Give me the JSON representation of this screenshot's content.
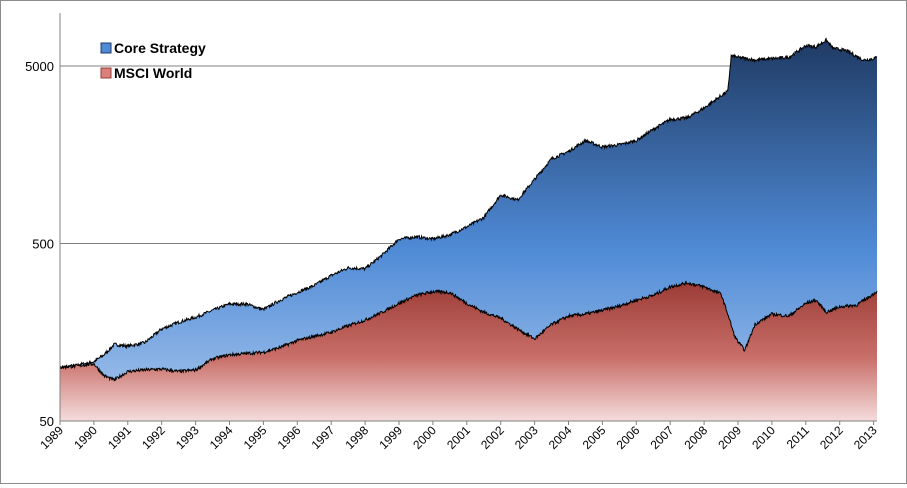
{
  "chart_data": {
    "type": "area",
    "title": "",
    "xlabel": "",
    "ylabel": "",
    "y_scale": "log",
    "ylim": [
      50,
      10000
    ],
    "y_ticks": [
      50,
      500,
      5000
    ],
    "y_tick_labels": [
      "50",
      "500",
      "5000"
    ],
    "x_range": [
      1989.0,
      2013.1
    ],
    "x_ticks": [
      1989,
      1990,
      1991,
      1992,
      1993,
      1994,
      1995,
      1996,
      1997,
      1998,
      1999,
      2000,
      2001,
      2002,
      2003,
      2004,
      2005,
      2006,
      2007,
      2008,
      2009,
      2010,
      2011,
      2012,
      2013
    ],
    "x_tick_labels": [
      "1989",
      "1990",
      "1991",
      "1992",
      "1993",
      "1994",
      "1995",
      "1996",
      "1997",
      "1998",
      "1999",
      "2000",
      "2001",
      "2002",
      "2003",
      "2004",
      "2005",
      "2006",
      "2007",
      "2008",
      "2009",
      "2010",
      "2011",
      "2012",
      "2013"
    ],
    "grid": "horizontal",
    "legend_position": "top-left",
    "series": [
      {
        "name": "Core Strategy",
        "color_top": "#1f3a63",
        "color_mid": "#4f8ad6",
        "color_bottom": "#a9c8ee",
        "points": [
          [
            1989.0,
            100
          ],
          [
            1989.5,
            103
          ],
          [
            1990.0,
            108
          ],
          [
            1990.3,
            118
          ],
          [
            1990.6,
            135
          ],
          [
            1991.0,
            132
          ],
          [
            1991.5,
            138
          ],
          [
            1992.0,
            165
          ],
          [
            1992.5,
            180
          ],
          [
            1993.0,
            192
          ],
          [
            1993.5,
            210
          ],
          [
            1994.0,
            228
          ],
          [
            1994.5,
            228
          ],
          [
            1995.0,
            212
          ],
          [
            1995.5,
            240
          ],
          [
            1996.0,
            265
          ],
          [
            1996.5,
            290
          ],
          [
            1997.0,
            330
          ],
          [
            1997.5,
            365
          ],
          [
            1998.0,
            360
          ],
          [
            1998.5,
            430
          ],
          [
            1999.0,
            530
          ],
          [
            1999.5,
            545
          ],
          [
            2000.0,
            530
          ],
          [
            2000.5,
            560
          ],
          [
            2001.0,
            620
          ],
          [
            2001.5,
            700
          ],
          [
            2002.0,
            940
          ],
          [
            2002.5,
            880
          ],
          [
            2003.0,
            1150
          ],
          [
            2003.5,
            1500
          ],
          [
            2004.0,
            1650
          ],
          [
            2004.5,
            1900
          ],
          [
            2005.0,
            1750
          ],
          [
            2005.5,
            1800
          ],
          [
            2006.0,
            1900
          ],
          [
            2006.5,
            2200
          ],
          [
            2007.0,
            2500
          ],
          [
            2007.5,
            2550
          ],
          [
            2008.0,
            2900
          ],
          [
            2008.5,
            3400
          ],
          [
            2008.7,
            3600
          ],
          [
            2008.8,
            5700
          ],
          [
            2009.0,
            5600
          ],
          [
            2009.5,
            5400
          ],
          [
            2010.0,
            5500
          ],
          [
            2010.5,
            5600
          ],
          [
            2011.0,
            6500
          ],
          [
            2011.3,
            6400
          ],
          [
            2011.6,
            7000
          ],
          [
            2011.8,
            6300
          ],
          [
            2012.2,
            6100
          ],
          [
            2012.7,
            5400
          ],
          [
            2013.0,
            5500
          ],
          [
            2013.1,
            5600
          ]
        ]
      },
      {
        "name": "MSCI World",
        "color_top": "#9c3b36",
        "color_mid": "#c96f69",
        "color_bottom": "#f4dddc",
        "points": [
          [
            1989.0,
            100
          ],
          [
            1989.5,
            102
          ],
          [
            1990.0,
            105
          ],
          [
            1990.3,
            90
          ],
          [
            1990.6,
            85
          ],
          [
            1991.0,
            95
          ],
          [
            1991.5,
            97
          ],
          [
            1992.0,
            98
          ],
          [
            1992.5,
            95
          ],
          [
            1993.0,
            97
          ],
          [
            1993.5,
            112
          ],
          [
            1994.0,
            118
          ],
          [
            1994.5,
            120
          ],
          [
            1995.0,
            122
          ],
          [
            1995.5,
            130
          ],
          [
            1996.0,
            142
          ],
          [
            1996.5,
            150
          ],
          [
            1997.0,
            158
          ],
          [
            1997.5,
            172
          ],
          [
            1998.0,
            185
          ],
          [
            1998.5,
            205
          ],
          [
            1999.0,
            230
          ],
          [
            1999.5,
            255
          ],
          [
            2000.0,
            268
          ],
          [
            2000.5,
            265
          ],
          [
            2001.0,
            230
          ],
          [
            2001.5,
            205
          ],
          [
            2002.0,
            190
          ],
          [
            2002.5,
            165
          ],
          [
            2003.0,
            145
          ],
          [
            2003.5,
            175
          ],
          [
            2004.0,
            195
          ],
          [
            2004.5,
            200
          ],
          [
            2005.0,
            210
          ],
          [
            2005.5,
            222
          ],
          [
            2006.0,
            240
          ],
          [
            2006.5,
            255
          ],
          [
            2007.0,
            285
          ],
          [
            2007.5,
            300
          ],
          [
            2008.0,
            285
          ],
          [
            2008.5,
            260
          ],
          [
            2008.7,
            200
          ],
          [
            2008.9,
            150
          ],
          [
            2009.0,
            140
          ],
          [
            2009.2,
            125
          ],
          [
            2009.5,
            175
          ],
          [
            2010.0,
            200
          ],
          [
            2010.5,
            195
          ],
          [
            2011.0,
            230
          ],
          [
            2011.3,
            240
          ],
          [
            2011.6,
            205
          ],
          [
            2012.0,
            220
          ],
          [
            2012.5,
            225
          ],
          [
            2013.0,
            260
          ],
          [
            2013.1,
            270
          ]
        ]
      }
    ]
  }
}
